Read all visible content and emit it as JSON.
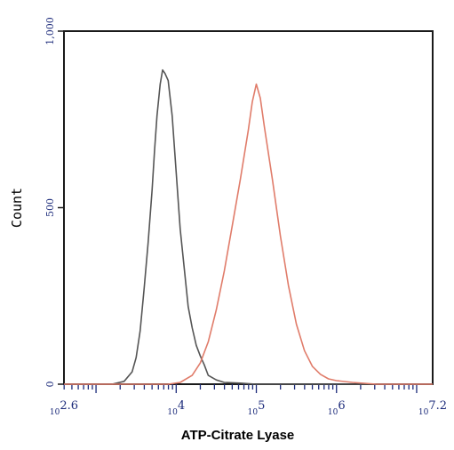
{
  "chart_data": {
    "type": "line",
    "xlabel": "ATP-Citrate Lyase",
    "ylabel": "Count",
    "xscale": "log",
    "xlim_log10": [
      2.6,
      7.2
    ],
    "ylim": [
      0,
      1000
    ],
    "x_tick_labels": [
      {
        "base": "10",
        "exp": "2.6",
        "value": 2.6
      },
      {
        "base": "10",
        "exp": "4",
        "value": 4.0
      },
      {
        "base": "10",
        "exp": "5",
        "value": 5.0
      },
      {
        "base": "10",
        "exp": "6",
        "value": 6.0
      },
      {
        "base": "10",
        "exp": "7.2",
        "value": 7.2
      }
    ],
    "y_ticks": [
      {
        "label": "0",
        "value": 0
      },
      {
        "label": "500",
        "value": 500
      },
      {
        "label": "1,000",
        "value": 1000
      }
    ],
    "grid": false,
    "legend": "none",
    "series": [
      {
        "color": "#555555",
        "x_log10": [
          2.6,
          3.2,
          3.35,
          3.45,
          3.5,
          3.55,
          3.6,
          3.65,
          3.7,
          3.73,
          3.76,
          3.8,
          3.83,
          3.86,
          3.9,
          3.95,
          4.0,
          4.05,
          4.1,
          4.15,
          4.2,
          4.25,
          4.3,
          4.35,
          4.4,
          4.5,
          4.6,
          4.8,
          5.0,
          5.5,
          6.0,
          7.2
        ],
        "y": [
          0,
          0,
          8,
          35,
          75,
          150,
          270,
          400,
          550,
          660,
          760,
          850,
          890,
          880,
          860,
          760,
          600,
          440,
          330,
          220,
          160,
          110,
          80,
          55,
          25,
          12,
          5,
          3,
          0,
          0,
          0,
          0
        ]
      },
      {
        "color": "#e07c6a",
        "x_log10": [
          2.6,
          3.9,
          4.05,
          4.2,
          4.3,
          4.4,
          4.5,
          4.6,
          4.7,
          4.8,
          4.9,
          4.95,
          5.0,
          5.05,
          5.1,
          5.2,
          5.3,
          5.4,
          5.5,
          5.6,
          5.7,
          5.8,
          5.9,
          6.0,
          6.2,
          6.5,
          7.2
        ],
        "y": [
          0,
          0,
          5,
          25,
          60,
          120,
          210,
          320,
          450,
          580,
          720,
          800,
          850,
          810,
          730,
          580,
          420,
          280,
          170,
          95,
          50,
          28,
          15,
          10,
          5,
          0,
          0
        ]
      }
    ]
  }
}
